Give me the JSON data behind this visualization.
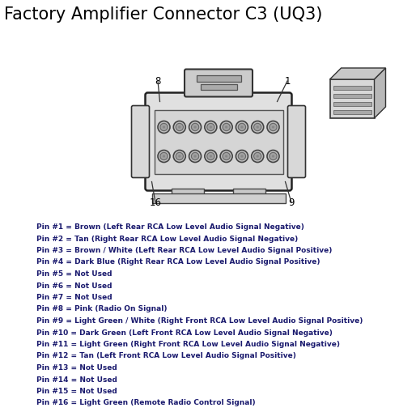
{
  "title": "Factory Amplifier Connector C3 (UQ3)",
  "title_fontsize": 15,
  "title_color": "#000000",
  "bg_color": "#ffffff",
  "pin_labels": [
    "Pin #1 = Brown (Left Rear RCA Low Level Audio Signal Negative)",
    "Pin #2 = Tan (Right Rear RCA Low Level Audio Signal Negative)",
    "Pin #3 = Brown / White (Left Rear RCA Low Level Audio Signal Positive)",
    "Pin #4 = Dark Blue (Right Rear RCA Low Level Audio Signal Positive)",
    "Pin #5 = Not Used",
    "Pin #6 = Not Used",
    "Pin #7 = Not Used",
    "Pin #8 = Pink (Radio On Signal)",
    "Pin #9 = Light Green / White (Right Front RCA Low Level Audio Signal Positive)",
    "Pin #10 = Dark Green (Left Front RCA Low Level Audio Signal Negative)",
    "Pin #11 = Light Green (Right Front RCA Low Level Audio Signal Negative)",
    "Pin #12 = Tan (Left Front RCA Low Level Audio Signal Positive)",
    "Pin #13 = Not Used",
    "Pin #14 = Not Used",
    "Pin #15 = Not Used",
    "Pin #16 = Light Green (Remote Radio Control Signal)"
  ],
  "text_fontsize": 6.5,
  "text_color": "#1a1a6e",
  "label_fontsize": 8.5,
  "label_color": "#000000"
}
